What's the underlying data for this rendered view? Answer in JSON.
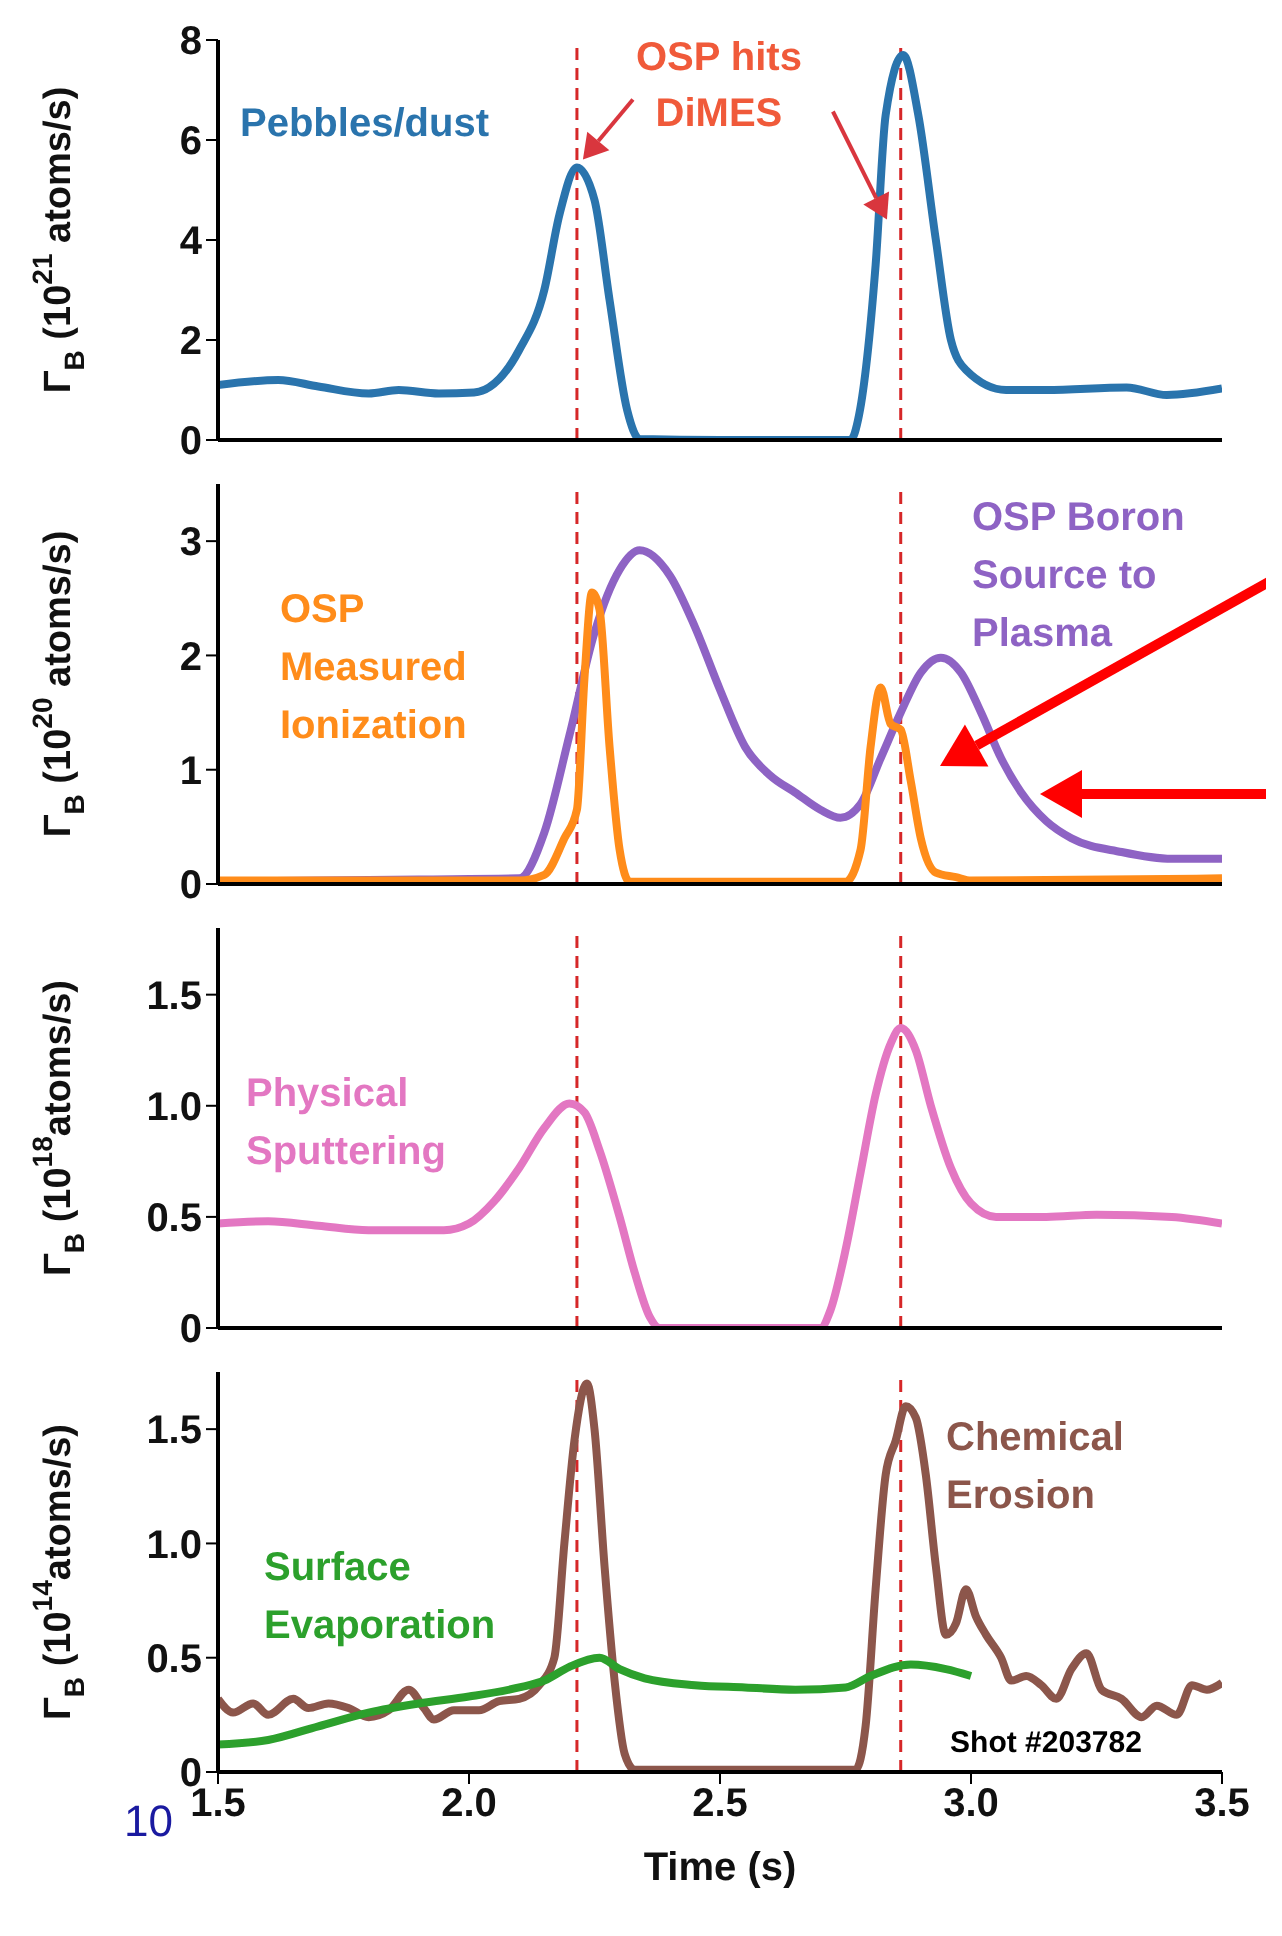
{
  "chart_data": [
    {
      "type": "line",
      "ylabel": "Γ$_{B}$ (10$^{21}$ atoms/s)",
      "xlim": [
        1.5,
        3.5
      ],
      "ylim": [
        0,
        8
      ],
      "yticks": [
        0,
        2,
        4,
        6,
        8
      ],
      "tick_labels": "y",
      "series": [
        {
          "name": "Pebbles/dust",
          "color": "#2a74ad",
          "x": [
            1.5,
            1.62,
            1.7,
            1.8,
            1.86,
            1.94,
            2.01,
            2.1,
            2.15,
            2.18,
            2.215,
            2.25,
            2.28,
            2.315,
            2.34,
            2.5,
            2.76,
            2.777,
            2.81,
            2.83,
            2.865,
            2.895,
            2.93,
            2.96,
            2.99,
            3.07,
            3.15,
            3.31,
            3.39,
            3.5
          ],
          "values": [
            1.1,
            1.2,
            1.07,
            0.93,
            1.0,
            0.93,
            0.95,
            1.8,
            3.0,
            4.5,
            5.45,
            4.8,
            2.8,
            0.6,
            0.02,
            0,
            0,
            0.5,
            3.5,
            6.5,
            7.7,
            6.5,
            4.0,
            2.0,
            1.4,
            1.0,
            1.0,
            1.05,
            0.9,
            1.03
          ]
        }
      ],
      "ref_lines": [
        {
          "axis": "x",
          "value": 2.215,
          "color": "#d62728",
          "line_style": "dashed"
        },
        {
          "axis": "x",
          "value": 2.86,
          "color": "#d62728",
          "line_style": "dashed"
        }
      ],
      "annotations": [
        {
          "text": "OSP hits DiMES",
          "x": 2.215,
          "y": 5.45
        }
      ]
    },
    {
      "type": "line",
      "ylabel": "Γ$_{B}$ (10$^{20}$ atoms/s)",
      "xlim": [
        1.5,
        3.5
      ],
      "ylim": [
        0,
        3.5
      ],
      "yticks": [
        0,
        1,
        2,
        3
      ],
      "tick_labels": "y",
      "series": [
        {
          "name": "OSP Boron Source to Plasma",
          "color": "#8e63c4",
          "x": [
            1.5,
            1.9,
            2.1,
            2.15,
            2.2,
            2.25,
            2.3,
            2.34,
            2.4,
            2.45,
            2.5,
            2.55,
            2.6,
            2.65,
            2.7,
            2.74,
            2.78,
            2.82,
            2.86,
            2.9,
            2.94,
            2.98,
            3.02,
            3.06,
            3.1,
            3.15,
            3.2,
            3.3,
            3.4,
            3.5
          ],
          "values": [
            0.02,
            0.04,
            0.05,
            0.45,
            1.3,
            2.2,
            2.75,
            2.92,
            2.7,
            2.25,
            1.7,
            1.2,
            0.95,
            0.8,
            0.65,
            0.58,
            0.7,
            1.1,
            1.5,
            1.85,
            1.98,
            1.85,
            1.5,
            1.1,
            0.8,
            0.55,
            0.4,
            0.28,
            0.22,
            0.22
          ]
        },
        {
          "name": "OSP Measured Ionization",
          "color": "#ff8c1a",
          "x": [
            1.5,
            2.1,
            2.15,
            2.19,
            2.215,
            2.23,
            2.245,
            2.26,
            2.28,
            2.3,
            2.32,
            2.75,
            2.78,
            2.8,
            2.82,
            2.84,
            2.86,
            2.88,
            2.9,
            2.93,
            2.97,
            3.0,
            3.5
          ],
          "values": [
            0.03,
            0.03,
            0.08,
            0.4,
            0.65,
            1.8,
            2.55,
            2.4,
            1.2,
            0.3,
            0.02,
            0.02,
            0.3,
            1.2,
            1.72,
            1.4,
            1.35,
            0.9,
            0.4,
            0.1,
            0.06,
            0.03,
            0.05
          ]
        }
      ],
      "ref_lines": [
        {
          "axis": "x",
          "value": 2.215,
          "color": "#d62728",
          "line_style": "dashed"
        },
        {
          "axis": "x",
          "value": 2.86,
          "color": "#d62728",
          "line_style": "dashed"
        }
      ]
    },
    {
      "type": "line",
      "ylabel": "Γ$_{B}$ (10$^{18}$atoms/s)",
      "xlim": [
        1.5,
        3.5
      ],
      "ylim": [
        0,
        1.8
      ],
      "yticks": [
        0,
        0.5,
        {
          "value": 1.0,
          "label": "1.0"
        },
        1.5
      ],
      "tick_labels": "y",
      "series": [
        {
          "name": "Physical Sputtering",
          "color": "#e377c2",
          "x": [
            1.5,
            1.6,
            1.7,
            1.8,
            1.95,
            2.0,
            2.05,
            2.1,
            2.15,
            2.2,
            2.23,
            2.26,
            2.3,
            2.33,
            2.36,
            2.38,
            2.7,
            2.72,
            2.75,
            2.78,
            2.81,
            2.84,
            2.86,
            2.89,
            2.92,
            2.96,
            3.0,
            3.05,
            3.15,
            3.25,
            3.4,
            3.5
          ],
          "values": [
            0.47,
            0.48,
            0.46,
            0.44,
            0.44,
            0.47,
            0.57,
            0.72,
            0.9,
            1.01,
            0.97,
            0.8,
            0.5,
            0.25,
            0.05,
            0,
            0,
            0.08,
            0.35,
            0.7,
            1.05,
            1.28,
            1.35,
            1.25,
            1.0,
            0.72,
            0.56,
            0.5,
            0.5,
            0.51,
            0.5,
            0.47
          ]
        }
      ],
      "ref_lines": [
        {
          "axis": "x",
          "value": 2.215,
          "color": "#d62728",
          "line_style": "dashed"
        },
        {
          "axis": "x",
          "value": 2.86,
          "color": "#d62728",
          "line_style": "dashed"
        }
      ]
    },
    {
      "type": "line",
      "ylabel": "Γ$_{B}$ (10$^{14}$atoms/s)",
      "xlabel": "Time (s)",
      "xlim": [
        1.5,
        3.5
      ],
      "xticks": [
        1.5,
        {
          "value": 2.0,
          "label": "2.0"
        },
        2.5,
        {
          "value": 3.0,
          "label": "3.0"
        },
        3.5
      ],
      "ylim": [
        0,
        1.75
      ],
      "yticks": [
        0,
        0.5,
        {
          "value": 1.0,
          "label": "1.0"
        },
        1.5
      ],
      "series": [
        {
          "name": "Chemical Erosion",
          "color": "#8c564b",
          "x": [
            1.5,
            1.53,
            1.57,
            1.6,
            1.65,
            1.68,
            1.72,
            1.76,
            1.8,
            1.84,
            1.88,
            1.91,
            1.93,
            1.97,
            2.02,
            2.06,
            2.1,
            2.14,
            2.17,
            2.19,
            2.21,
            2.235,
            2.25,
            2.27,
            2.29,
            2.31,
            2.33,
            2.77,
            2.79,
            2.81,
            2.83,
            2.85,
            2.87,
            2.89,
            2.91,
            2.93,
            2.95,
            2.97,
            2.99,
            3.01,
            3.03,
            3.06,
            3.08,
            3.11,
            3.14,
            3.17,
            3.2,
            3.23,
            3.26,
            3.3,
            3.34,
            3.37,
            3.41,
            3.44,
            3.47,
            3.5
          ],
          "values": [
            0.32,
            0.26,
            0.3,
            0.25,
            0.32,
            0.28,
            0.3,
            0.28,
            0.24,
            0.27,
            0.36,
            0.28,
            0.23,
            0.27,
            0.27,
            0.31,
            0.32,
            0.38,
            0.5,
            1.0,
            1.45,
            1.7,
            1.5,
            0.9,
            0.4,
            0.08,
            0.01,
            0.01,
            0.2,
            0.8,
            1.3,
            1.45,
            1.6,
            1.55,
            1.3,
            0.9,
            0.6,
            0.65,
            0.8,
            0.68,
            0.6,
            0.5,
            0.4,
            0.42,
            0.38,
            0.32,
            0.45,
            0.52,
            0.36,
            0.32,
            0.24,
            0.29,
            0.25,
            0.38,
            0.36,
            0.39
          ]
        },
        {
          "name": "Surface Evaporation",
          "color": "#2ca02c",
          "x": [
            1.5,
            1.6,
            1.7,
            1.8,
            1.9,
            2.0,
            2.1,
            2.15,
            2.2,
            2.26,
            2.3,
            2.35,
            2.45,
            2.55,
            2.65,
            2.75,
            2.8,
            2.88,
            2.95,
            3.0
          ],
          "values": [
            0.12,
            0.14,
            0.2,
            0.26,
            0.3,
            0.33,
            0.37,
            0.4,
            0.46,
            0.5,
            0.45,
            0.41,
            0.38,
            0.37,
            0.36,
            0.37,
            0.42,
            0.47,
            0.45,
            0.42
          ]
        }
      ],
      "ref_lines": [
        {
          "axis": "x",
          "value": 2.215,
          "color": "#d62728",
          "line_style": "dashed"
        },
        {
          "axis": "x",
          "value": 2.86,
          "color": "#d62728",
          "line_style": "dashed"
        }
      ],
      "annotations": [
        "Shot #203782",
        "10"
      ]
    }
  ]
}
